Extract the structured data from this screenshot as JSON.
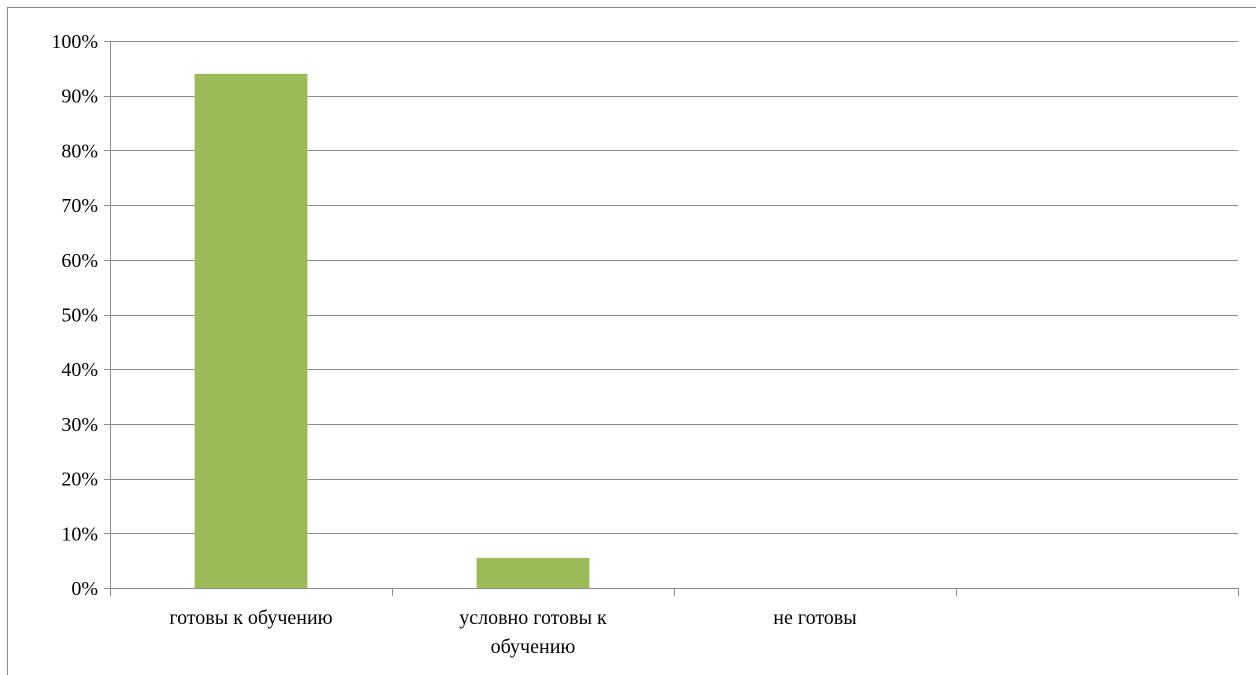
{
  "chart_data": {
    "type": "bar",
    "title": "",
    "xlabel": "",
    "ylabel": "",
    "categories": [
      [
        "готовы к обучению"
      ],
      [
        "условно готовы к",
        "обучению"
      ],
      [
        "не готовы"
      ],
      [
        ""
      ]
    ],
    "values": [
      0.94,
      0.055,
      0,
      null
    ],
    "ylim": [
      0,
      1
    ],
    "yticks": [
      {
        "value": 0,
        "label": "0%"
      },
      {
        "value": 0.1,
        "label": "10%"
      },
      {
        "value": 0.2,
        "label": "20%"
      },
      {
        "value": 0.3,
        "label": "30%"
      },
      {
        "value": 0.4,
        "label": "40%"
      },
      {
        "value": 0.5,
        "label": "50%"
      },
      {
        "value": 0.6,
        "label": "60%"
      },
      {
        "value": 0.7,
        "label": "70%"
      },
      {
        "value": 0.8,
        "label": "80%"
      },
      {
        "value": 0.9,
        "label": "90%"
      },
      {
        "value": 1.0,
        "label": "100%"
      }
    ],
    "grid": true,
    "legend": "none",
    "bar_color": "#9BBB59",
    "grid_color": "#8C8C8C",
    "axis_color": "#8C8C8C"
  }
}
